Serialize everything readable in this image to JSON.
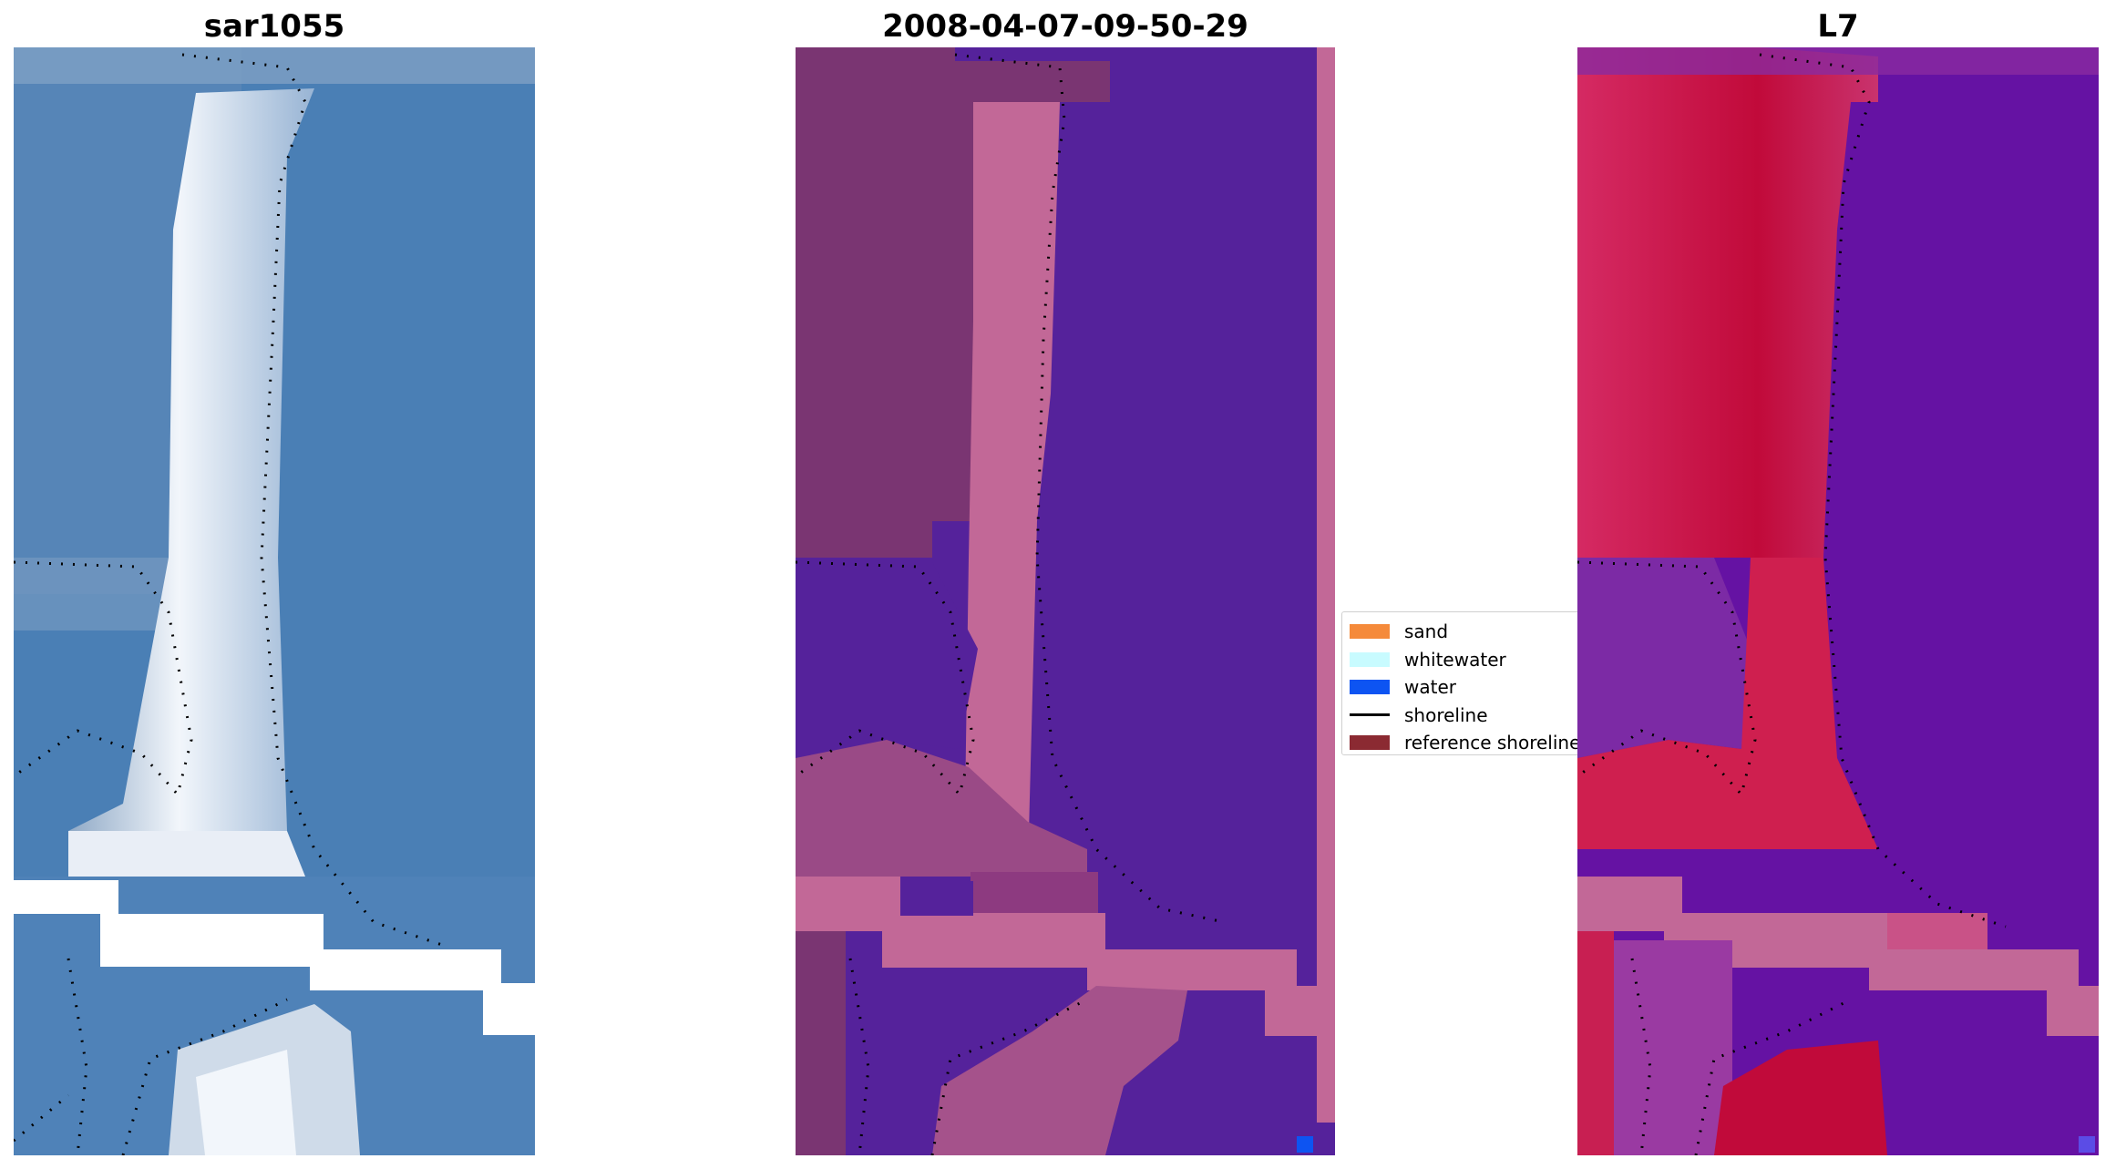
{
  "panels": [
    {
      "title": "sar1055"
    },
    {
      "title": "2008-04-07-09-50-29"
    },
    {
      "title": "L7"
    }
  ],
  "legend": {
    "items": [
      {
        "label": "sand",
        "color": "#f58a3a"
      },
      {
        "label": "whitewater",
        "color": "#c8fbff"
      },
      {
        "label": "water",
        "color": "#0d54f2"
      },
      {
        "label": "shoreline",
        "color": "#000000"
      },
      {
        "label": "reference shoreline",
        "color": "#8b2a32"
      }
    ]
  },
  "colors": {
    "rgb_water": "#4a7fb5",
    "rgb_beach": "#dde6f0",
    "classified_land": "#7a3572",
    "classified_sea": "#55229b",
    "classified_fill": "#c26897",
    "index_land": "#c8204a",
    "index_sea": "#6512a3"
  }
}
